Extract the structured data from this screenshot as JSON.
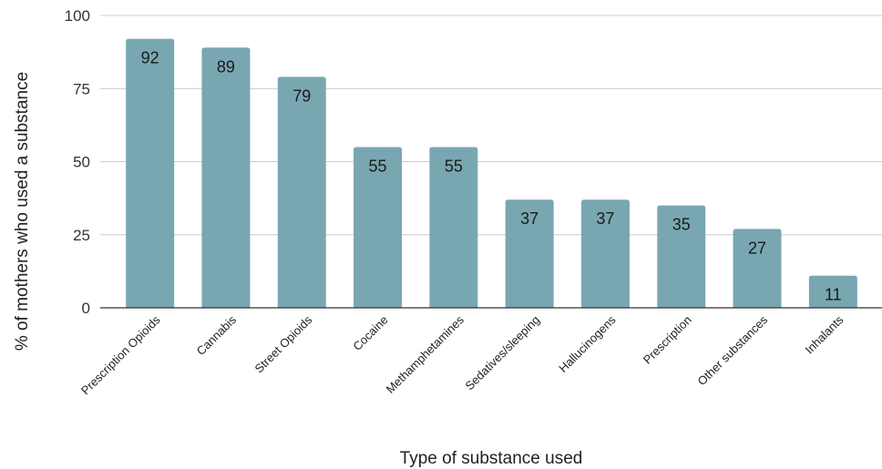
{
  "chart_data": {
    "type": "bar",
    "categories": [
      "Prescription Opioids",
      "Cannabis",
      "Street Opioids",
      "Cocaine",
      "Methamphetamines",
      "Sedatives/sleeping",
      "Hallucinogens",
      "Prescription",
      "Other substances",
      "Inhalants"
    ],
    "values": [
      92,
      89,
      79,
      55,
      55,
      37,
      37,
      35,
      27,
      11
    ],
    "xlabel": "Type of substance used",
    "ylabel": "% of mothers who used a substance",
    "ylim": [
      0,
      100
    ],
    "yticks": [
      0,
      25,
      50,
      75,
      100
    ],
    "grid": true,
    "data_labels": true,
    "colors": {
      "bar": "#78a7b2",
      "grid": "#cccccc",
      "axis": "#333333"
    }
  }
}
